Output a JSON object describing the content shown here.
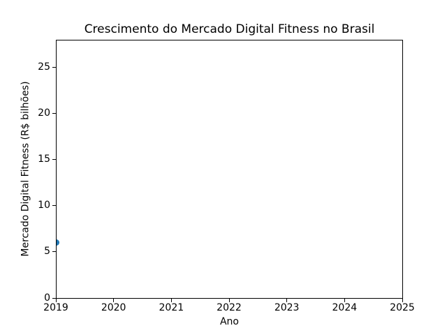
{
  "figure": {
    "background_color": "#ffffff",
    "axis_color": "#000000",
    "text_color": "#000000"
  },
  "chart_data": {
    "type": "scatter",
    "title": "Crescimento do Mercado Digital Fitness no Brasil",
    "xlabel": "Ano",
    "ylabel": "Mercado Digital Fitness (R$ bilhões)",
    "x": [
      2019
    ],
    "y": [
      6
    ],
    "xlim": [
      2019,
      2025
    ],
    "ylim": [
      0,
      28
    ],
    "xticks": [
      2019,
      2020,
      2021,
      2022,
      2023,
      2024,
      2025
    ],
    "yticks": [
      0,
      5,
      10,
      15,
      20,
      25
    ],
    "marker_color": "#1f77b4",
    "marker_radius_px": 4.5,
    "grid": false,
    "legend_position": "none"
  }
}
